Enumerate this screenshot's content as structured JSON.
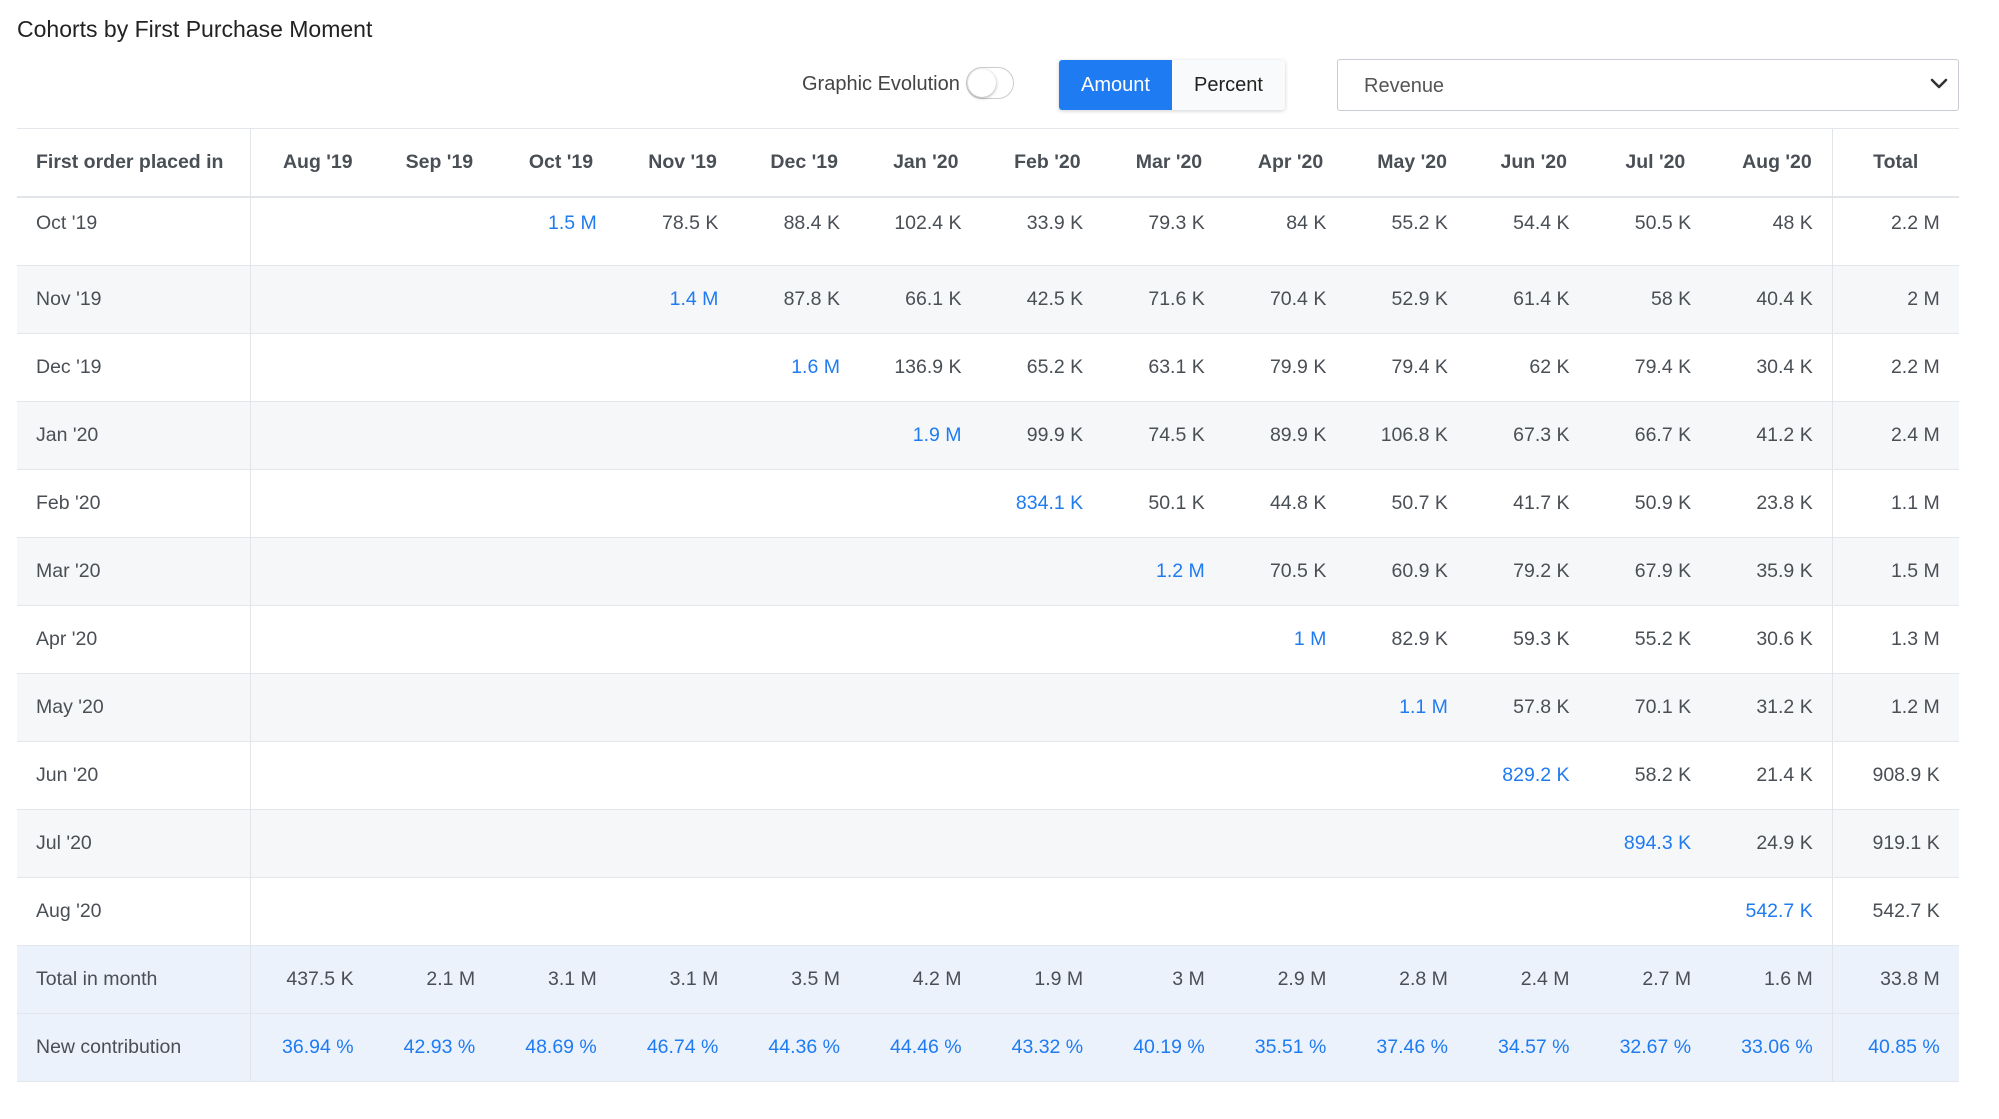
{
  "title": "Cohorts by First Purchase Moment",
  "toolbar": {
    "toggle_label": "Graphic Evolution",
    "amount_label": "Amount",
    "percent_label": "Percent",
    "metric_value": "Revenue"
  },
  "table": {
    "first_header": "First order placed in",
    "months": [
      "Aug '19",
      "Sep '19",
      "Oct '19",
      "Nov '19",
      "Dec '19",
      "Jan '20",
      "Feb '20",
      "Mar '20",
      "Apr '20",
      "May '20",
      "Jun '20",
      "Jul '20",
      "Aug '20"
    ],
    "total_header": "Total",
    "rows": [
      {
        "label": "Oct '19",
        "diag": 2,
        "values": [
          "",
          "",
          "1.5 M",
          "78.5 K",
          "88.4 K",
          "102.4 K",
          "33.9 K",
          "79.3 K",
          "84 K",
          "55.2 K",
          "54.4 K",
          "50.5 K",
          "48 K"
        ],
        "total": "2.2 M"
      },
      {
        "label": "Nov '19",
        "diag": 3,
        "values": [
          "",
          "",
          "",
          "1.4 M",
          "87.8 K",
          "66.1 K",
          "42.5 K",
          "71.6 K",
          "70.4 K",
          "52.9 K",
          "61.4 K",
          "58 K",
          "40.4 K"
        ],
        "total": "2 M"
      },
      {
        "label": "Dec '19",
        "diag": 4,
        "values": [
          "",
          "",
          "",
          "",
          "1.6 M",
          "136.9 K",
          "65.2 K",
          "63.1 K",
          "79.9 K",
          "79.4 K",
          "62 K",
          "79.4 K",
          "30.4 K"
        ],
        "total": "2.2 M"
      },
      {
        "label": "Jan '20",
        "diag": 5,
        "values": [
          "",
          "",
          "",
          "",
          "",
          "1.9 M",
          "99.9 K",
          "74.5 K",
          "89.9 K",
          "106.8 K",
          "67.3 K",
          "66.7 K",
          "41.2 K"
        ],
        "total": "2.4 M"
      },
      {
        "label": "Feb '20",
        "diag": 6,
        "values": [
          "",
          "",
          "",
          "",
          "",
          "",
          "834.1 K",
          "50.1 K",
          "44.8 K",
          "50.7 K",
          "41.7 K",
          "50.9 K",
          "23.8 K"
        ],
        "total": "1.1 M"
      },
      {
        "label": "Mar '20",
        "diag": 7,
        "values": [
          "",
          "",
          "",
          "",
          "",
          "",
          "",
          "1.2 M",
          "70.5 K",
          "60.9 K",
          "79.2 K",
          "67.9 K",
          "35.9 K"
        ],
        "total": "1.5 M"
      },
      {
        "label": "Apr '20",
        "diag": 8,
        "values": [
          "",
          "",
          "",
          "",
          "",
          "",
          "",
          "",
          "1 M",
          "82.9 K",
          "59.3 K",
          "55.2 K",
          "30.6 K"
        ],
        "total": "1.3 M"
      },
      {
        "label": "May '20",
        "diag": 9,
        "values": [
          "",
          "",
          "",
          "",
          "",
          "",
          "",
          "",
          "",
          "1.1 M",
          "57.8 K",
          "70.1 K",
          "31.2 K"
        ],
        "total": "1.2 M"
      },
      {
        "label": "Jun '20",
        "diag": 10,
        "values": [
          "",
          "",
          "",
          "",
          "",
          "",
          "",
          "",
          "",
          "",
          "829.2 K",
          "58.2 K",
          "21.4 K"
        ],
        "total": "908.9 K"
      },
      {
        "label": "Jul '20",
        "diag": 11,
        "values": [
          "",
          "",
          "",
          "",
          "",
          "",
          "",
          "",
          "",
          "",
          "",
          "894.3 K",
          "24.9 K"
        ],
        "total": "919.1 K"
      },
      {
        "label": "Aug '20",
        "diag": 12,
        "values": [
          "",
          "",
          "",
          "",
          "",
          "",
          "",
          "",
          "",
          "",
          "",
          "",
          "542.7 K"
        ],
        "total": "542.7 K"
      }
    ],
    "total_row": {
      "label": "Total in month",
      "values": [
        "437.5 K",
        "2.1 M",
        "3.1 M",
        "3.1 M",
        "3.5 M",
        "4.2 M",
        "1.9 M",
        "3 M",
        "2.9 M",
        "2.8 M",
        "2.4 M",
        "2.7 M",
        "1.6 M"
      ],
      "total": "33.8 M"
    },
    "contribution_row": {
      "label": "New contribution",
      "values": [
        "36.94 %",
        "42.93 %",
        "48.69 %",
        "46.74 %",
        "44.36 %",
        "44.46 %",
        "43.32 %",
        "40.19 %",
        "35.51 %",
        "37.46 %",
        "34.57 %",
        "32.67 %",
        "33.06 %"
      ],
      "total": "40.85 %"
    }
  },
  "colors": {
    "accent": "#1f7bf2",
    "row_alt": "#f6f7f9",
    "total_bg": "#ebf2fb",
    "text": "#4a4f55"
  },
  "icons": {
    "dropdown": "chevron-down-icon"
  }
}
